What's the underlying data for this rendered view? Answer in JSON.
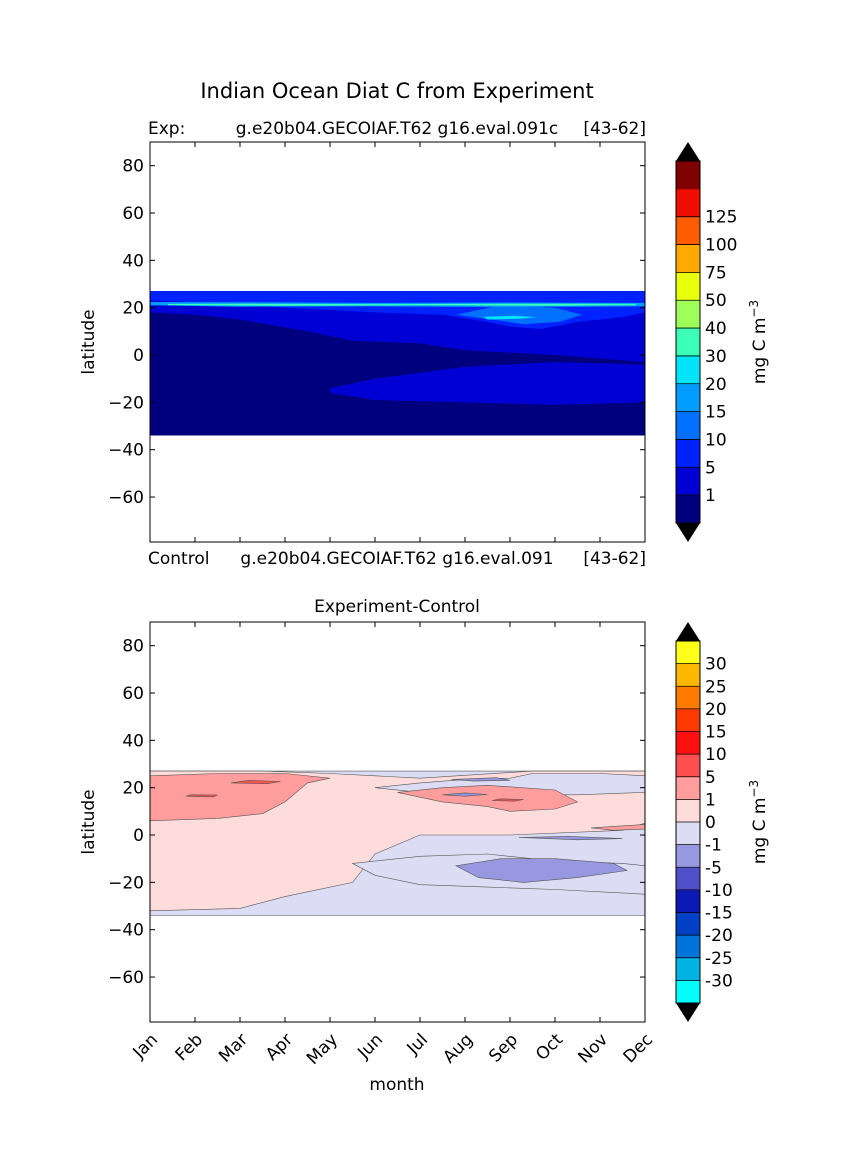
{
  "figure_title": "Indian Ocean Diat C from Experiment",
  "chart_data": [
    {
      "type": "heatmap",
      "title_left": "Exp:",
      "title_center": "g.e20b04.GECOIAF.T62 g16.eval.091c",
      "title_right": "[43-62]",
      "xlabel": "",
      "ylabel": "latitude",
      "xlim": [
        0,
        11
      ],
      "ylim": [
        -79,
        90
      ],
      "y_ticks": [
        80,
        60,
        40,
        20,
        0,
        -20,
        -40,
        -60
      ],
      "y_tick_labels": [
        "80",
        "60",
        "40",
        "20",
        "0",
        "−20",
        "−40",
        "−60"
      ],
      "data_lat_range": [
        -34,
        27
      ],
      "colorbar": {
        "unit_base": "mg C m",
        "unit_exp": "−3",
        "levels": [
          "",
          "1",
          "5",
          "10",
          "15",
          "20",
          "30",
          "40",
          "50",
          "75",
          "100",
          "125",
          ""
        ],
        "colors": [
          "#00007f",
          "#0000d5",
          "#0022ff",
          "#0070ff",
          "#009cff",
          "#00e4f8",
          "#3cffba",
          "#9eff58",
          "#e8ff0c",
          "#ffaa00",
          "#ff5b00",
          "#f00d00",
          "#7f0000"
        ],
        "under_color": "#000000",
        "over_color": "#000000"
      },
      "regions": [
        {
          "color": "#00007f",
          "points": [
            [
              0,
              -34
            ],
            [
              11,
              -34
            ],
            [
              11,
              27
            ],
            [
              0,
              27
            ]
          ]
        },
        {
          "color": "#0000d5",
          "points": [
            [
              0,
              18
            ],
            [
              1,
              17
            ],
            [
              2,
              15
            ],
            [
              3.5,
              10
            ],
            [
              4.5,
              6
            ],
            [
              6,
              5
            ],
            [
              7,
              2
            ],
            [
              9,
              0
            ],
            [
              11,
              -3
            ],
            [
              11,
              27
            ],
            [
              0,
              27
            ]
          ]
        },
        {
          "color": "#0000d5",
          "points": [
            [
              4,
              -14
            ],
            [
              5,
              -10
            ],
            [
              7,
              -5
            ],
            [
              9,
              -3
            ],
            [
              11,
              -4
            ],
            [
              11,
              -20
            ],
            [
              9,
              -21
            ],
            [
              7,
              -20
            ],
            [
              5,
              -19
            ],
            [
              4,
              -16
            ]
          ]
        },
        {
          "color": "#0022ff",
          "points": [
            [
              0,
              23
            ],
            [
              1.5,
              22
            ],
            [
              3,
              20
            ],
            [
              4,
              19
            ],
            [
              5,
              18
            ],
            [
              6.5,
              17
            ],
            [
              7.5,
              14
            ],
            [
              8,
              12
            ],
            [
              8.7,
              11
            ],
            [
              9.5,
              14
            ],
            [
              10.5,
              16
            ],
            [
              11,
              18
            ],
            [
              11,
              27
            ],
            [
              0,
              27
            ]
          ]
        },
        {
          "color": "#0070ff",
          "points": [
            [
              6.8,
              17
            ],
            [
              7.6,
              15
            ],
            [
              8.3,
              13
            ],
            [
              9.1,
              14
            ],
            [
              9.6,
              17
            ],
            [
              9,
              20
            ],
            [
              7.8,
              21
            ]
          ]
        },
        {
          "color": "#009cff",
          "points": [
            [
              0,
              21
            ],
            [
              2,
              20.4
            ],
            [
              5,
              20.6
            ],
            [
              8,
              20.3
            ],
            [
              11,
              20.6
            ],
            [
              11,
              22
            ],
            [
              8,
              22.2
            ],
            [
              5,
              22
            ],
            [
              2,
              22.3
            ],
            [
              0,
              22.4
            ]
          ]
        },
        {
          "color": "#3cffba",
          "points": [
            [
              0.4,
              21.1
            ],
            [
              3,
              20.8
            ],
            [
              6,
              21
            ],
            [
              9,
              20.8
            ],
            [
              10.8,
              21
            ],
            [
              10.8,
              21.6
            ],
            [
              8,
              21.7
            ],
            [
              5,
              21.5
            ],
            [
              2,
              21.7
            ],
            [
              0.4,
              21.6
            ]
          ]
        },
        {
          "color": "#00e4f8",
          "points": [
            [
              7.5,
              15
            ],
            [
              8.2,
              15.3
            ],
            [
              8.6,
              16
            ],
            [
              8.1,
              16.6
            ],
            [
              7.4,
              16.1
            ]
          ]
        }
      ]
    },
    {
      "type": "heatmap",
      "title_left": "Control",
      "title_center": "g.e20b04.GECOIAF.T62 g16.eval.091",
      "title_right": "[43-62]",
      "subtitle": "Experiment-Control",
      "xlabel": "month",
      "ylabel": "latitude",
      "xlim": [
        0,
        11
      ],
      "ylim": [
        -79,
        90
      ],
      "x_tick_labels": [
        "Jan",
        "Feb",
        "Mar",
        "Apr",
        "May",
        "Jun",
        "Jul",
        "Aug",
        "Sep",
        "Oct",
        "Nov",
        "Dec"
      ],
      "y_ticks": [
        80,
        60,
        40,
        20,
        0,
        -20,
        -40,
        -60
      ],
      "y_tick_labels": [
        "80",
        "60",
        "40",
        "20",
        "0",
        "−20",
        "−40",
        "−60"
      ],
      "data_lat_range": [
        -34,
        27
      ],
      "colorbar": {
        "unit_base": "mg C m",
        "unit_exp": "−3",
        "levels": [
          "",
          "-30",
          "-25",
          "-20",
          "-15",
          "-10",
          "-5",
          "-1",
          "0",
          "1",
          "5",
          "10",
          "15",
          "20",
          "25",
          "30",
          ""
        ],
        "colors": [
          "#00ffff",
          "#00b4e4",
          "#0074d8",
          "#0040c4",
          "#0c18b4",
          "#5050cc",
          "#9898e0",
          "#dcdcf4",
          "#ffdcdc",
          "#ff9c9c",
          "#ff5050",
          "#ff1010",
          "#ff3a00",
          "#ff7a00",
          "#ffb800",
          "#ffff1c"
        ],
        "under_color": "#000000",
        "over_color": "#000000"
      },
      "regions": [
        {
          "color": "#dcdcf4",
          "points": [
            [
              0,
              -34
            ],
            [
              11,
              -34
            ],
            [
              11,
              27
            ],
            [
              0,
              27
            ]
          ]
        },
        {
          "color": "#ffdcdc",
          "points": [
            [
              0,
              27
            ],
            [
              2.5,
              27
            ],
            [
              4,
              26
            ],
            [
              5,
              25
            ],
            [
              6,
              24
            ],
            [
              8.5,
              27
            ],
            [
              11,
              27
            ],
            [
              11,
              5
            ],
            [
              10.5,
              2
            ],
            [
              8,
              0
            ],
            [
              6,
              0
            ],
            [
              5,
              -8
            ],
            [
              4.5,
              -20
            ],
            [
              3,
              -26
            ],
            [
              2,
              -31
            ],
            [
              0,
              -32
            ]
          ]
        },
        {
          "color": "#dcdcf4",
          "points": [
            [
              4.5,
              -12
            ],
            [
              6,
              -9
            ],
            [
              7.5,
              -8
            ],
            [
              9,
              -11
            ],
            [
              10.5,
              -12
            ],
            [
              11,
              -13
            ],
            [
              11,
              -25
            ],
            [
              9,
              -23
            ],
            [
              7.5,
              -22
            ],
            [
              6,
              -21
            ],
            [
              5,
              -17
            ]
          ]
        },
        {
          "color": "#9898e0",
          "points": [
            [
              6.8,
              -13
            ],
            [
              7.8,
              -10
            ],
            [
              9,
              -10
            ],
            [
              10.3,
              -12
            ],
            [
              10.6,
              -15
            ],
            [
              9.5,
              -18
            ],
            [
              8.3,
              -20
            ],
            [
              7.3,
              -18
            ]
          ]
        },
        {
          "color": "#dcdcf4",
          "points": [
            [
              5,
              20
            ],
            [
              6,
              22
            ],
            [
              7,
              23.5
            ],
            [
              8,
              24
            ],
            [
              8.5,
              26
            ],
            [
              10,
              26
            ],
            [
              11,
              25
            ],
            [
              11,
              18
            ],
            [
              9.5,
              17
            ],
            [
              8,
              17
            ],
            [
              6,
              18
            ]
          ]
        },
        {
          "color": "#ff9c9c",
          "points": [
            [
              0,
              6
            ],
            [
              1.5,
              7
            ],
            [
              2.5,
              9
            ],
            [
              3,
              14
            ],
            [
              3.5,
              22
            ],
            [
              4,
              24
            ],
            [
              3,
              26
            ],
            [
              1.5,
              26
            ],
            [
              0,
              25
            ]
          ]
        },
        {
          "color": "#ff9c9c",
          "points": [
            [
              5.5,
              18
            ],
            [
              6.5,
              20
            ],
            [
              7.5,
              21
            ],
            [
              9,
              19
            ],
            [
              9.5,
              14
            ],
            [
              9,
              11
            ],
            [
              8,
              10
            ],
            [
              7.5,
              12
            ],
            [
              6.5,
              14
            ]
          ]
        },
        {
          "color": "#ff5050",
          "points": [
            [
              1.8,
              22
            ],
            [
              2.6,
              21.7
            ],
            [
              2.9,
              22.6
            ],
            [
              2.2,
              23.1
            ]
          ]
        },
        {
          "color": "#ff5050",
          "points": [
            [
              0.8,
              16.4
            ],
            [
              1.4,
              16.1
            ],
            [
              1.5,
              16.9
            ],
            [
              0.9,
              17.0
            ]
          ]
        },
        {
          "color": "#ff5050",
          "points": [
            [
              7.6,
              14.6
            ],
            [
              8.1,
              14.3
            ],
            [
              8.3,
              15
            ],
            [
              7.8,
              15.3
            ]
          ]
        },
        {
          "color": "#ff9c9c",
          "points": [
            [
              9.8,
              3
            ],
            [
              10.6,
              4
            ],
            [
              11,
              4.5
            ],
            [
              11,
              2.5
            ],
            [
              10.3,
              2
            ]
          ]
        },
        {
          "color": "#9898e0",
          "points": [
            [
              6.7,
              23.5
            ],
            [
              7.2,
              22.8
            ],
            [
              8.0,
              23.1
            ],
            [
              7.7,
              24.2
            ]
          ]
        },
        {
          "color": "#9898e0",
          "points": [
            [
              6.5,
              17
            ],
            [
              7.0,
              16.4
            ],
            [
              7.5,
              17.1
            ],
            [
              7.0,
              17.8
            ]
          ]
        },
        {
          "color": "#9898e0",
          "points": [
            [
              8.2,
              -1
            ],
            [
              9.5,
              -2
            ],
            [
              10.5,
              -1.5
            ],
            [
              9.3,
              -0.6
            ]
          ]
        }
      ]
    }
  ]
}
